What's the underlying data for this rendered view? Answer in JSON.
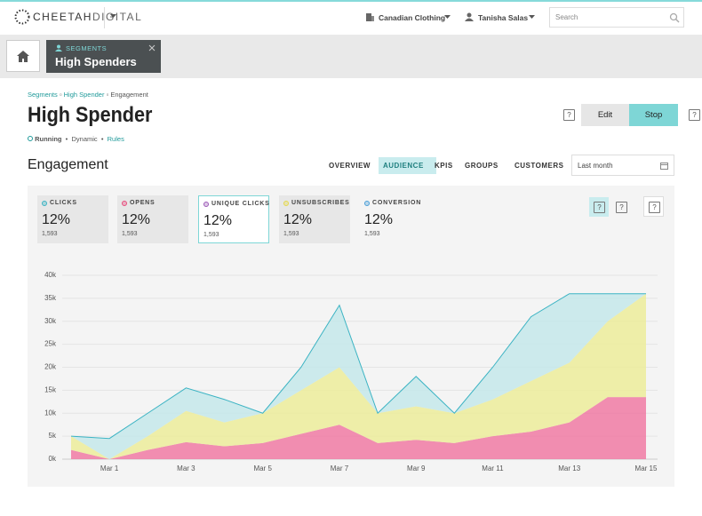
{
  "header": {
    "logo_bold": "CHEETAH",
    "logo_light": "DIGITAL",
    "account": "Canadian Clothing",
    "user": "Tanisha Salas",
    "search_placeholder": "Search"
  },
  "tab": {
    "label": "SEGMENTS",
    "title": "High Spenders"
  },
  "breadcrumb": [
    "Segments",
    "High Spender",
    "Engagement"
  ],
  "page": {
    "title": "High Spender",
    "status": "Running",
    "kind": "Dynamic",
    "rules": "Rules",
    "edit": "Edit",
    "stop": "Stop",
    "help_icon": "?"
  },
  "section": {
    "title": "Engagement",
    "tabs": [
      "OVERVIEW",
      "AUDIENCE",
      "KPIS",
      "GROUPS",
      "CUSTOMERS"
    ],
    "active_tab": 1,
    "date_range": "Last month"
  },
  "metrics": [
    {
      "label": "CLICKS",
      "value": "12%",
      "count": "1,593",
      "color": "#3bb3c3"
    },
    {
      "label": "OPENS",
      "value": "12%",
      "count": "1,593",
      "color": "#e84c7d"
    },
    {
      "label": "UNIQUE CLICKS",
      "value": "12%",
      "count": "1,593",
      "color": "#9b59b6"
    },
    {
      "label": "UNSUBSCRIBES",
      "value": "12%",
      "count": "1,593",
      "color": "#e5d84a"
    },
    {
      "label": "CONVERSION",
      "value": "12%",
      "count": "1,593",
      "color": "#4a9fd8"
    }
  ],
  "active_metric": 2,
  "chart_data": {
    "type": "stacked-area",
    "categories": [
      null,
      "Mar 1",
      null,
      "Mar 3",
      null,
      "Mar 5",
      null,
      "Mar 7",
      null,
      "Mar 9",
      null,
      "Mar 11",
      null,
      "Mar 13",
      null,
      "Mar 15"
    ],
    "series": [
      {
        "color": "#f07aa3",
        "values": [
          2000,
          0,
          2000,
          3700,
          2800,
          3500,
          5500,
          7500,
          3500,
          4200,
          3500,
          5000,
          6000,
          8000,
          13500,
          13500
        ]
      },
      {
        "color": "#ecec9a",
        "values": [
          3000,
          0,
          3000,
          6800,
          5200,
          6500,
          9500,
          12500,
          6500,
          7300,
          6500,
          8000,
          11000,
          13000,
          16500,
          22500
        ]
      },
      {
        "color": "#c4e7ea",
        "values": [
          0,
          4500,
          5000,
          5000,
          5000,
          0,
          5000,
          13500,
          0,
          6500,
          0,
          7000,
          14000,
          15000,
          6000,
          0
        ]
      }
    ],
    "ylim": [
      0,
      40000
    ],
    "yticks": [
      {
        "value": 0,
        "label": "0k"
      },
      {
        "value": 5000,
        "label": "5k"
      },
      {
        "value": 10000,
        "label": "10k"
      },
      {
        "value": 15000,
        "label": "15k"
      },
      {
        "value": 20000,
        "label": "20k"
      },
      {
        "value": 25000,
        "label": "25k"
      },
      {
        "value": 30000,
        "label": "30k"
      },
      {
        "value": 35000,
        "label": "35k"
      },
      {
        "value": 40000,
        "label": "40k"
      }
    ],
    "grid": true,
    "line_color": "#3bb3c3"
  }
}
